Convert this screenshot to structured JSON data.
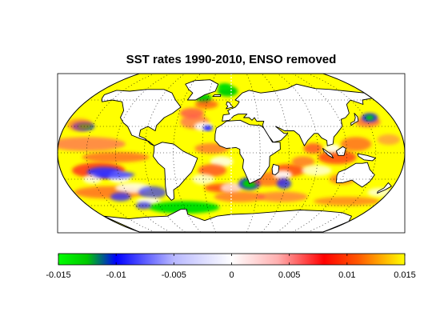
{
  "title": "SST rates 1990-2010, ENSO removed",
  "projection": "robinson",
  "gridlines": true,
  "colorbar": {
    "orientation": "horizontal",
    "placement": "bottom",
    "range": [
      -0.015,
      0.015
    ],
    "ticks": [
      -0.015,
      -0.01,
      -0.005,
      0,
      0.005,
      0.01,
      0.015
    ],
    "tick_labels": [
      "-0.015",
      "-0.01",
      "-0.005",
      "0",
      "0.005",
      "0.01",
      "0.015"
    ],
    "colormap": [
      {
        "value": -0.015,
        "color": "#00ff00"
      },
      {
        "value": -0.0125,
        "color": "#00c800"
      },
      {
        "value": -0.01,
        "color": "#0000ff"
      },
      {
        "value": -0.005,
        "color": "#b8b8ff"
      },
      {
        "value": 0,
        "color": "#ffffff"
      },
      {
        "value": 0.004,
        "color": "#ffb0b0"
      },
      {
        "value": 0.008,
        "color": "#ff0000"
      },
      {
        "value": 0.011,
        "color": "#ff5a00"
      },
      {
        "value": 0.015,
        "color": "#ffff00"
      }
    ]
  },
  "colors": {
    "land": "#ffffff",
    "coastline": "#000000",
    "ocean_background": "#ffff00",
    "frame": "#000000"
  }
}
